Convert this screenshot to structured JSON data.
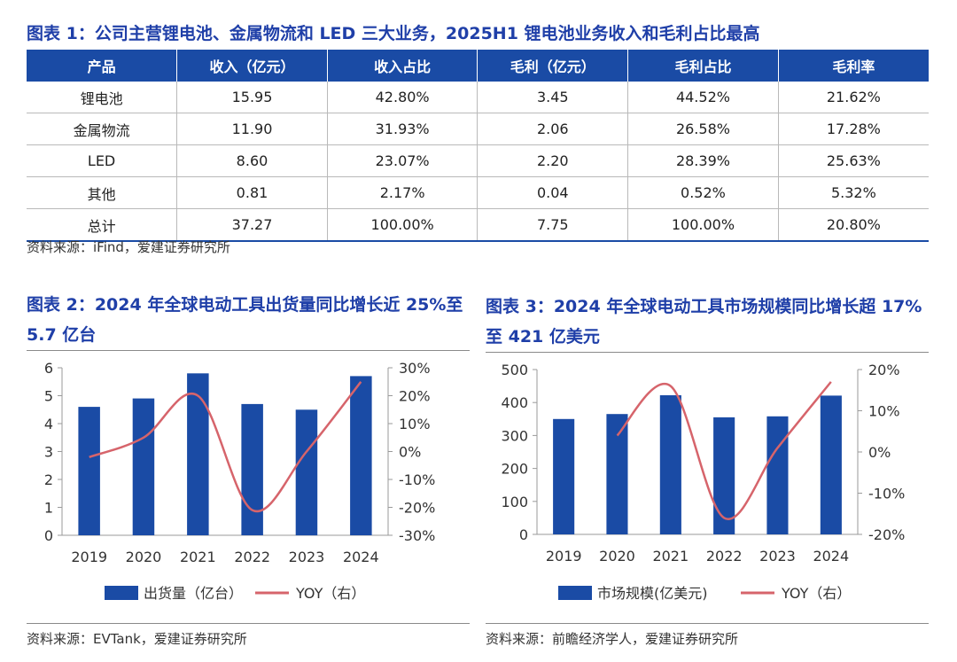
{
  "table1": {
    "title": "图表 1：公司主营锂电池、金属物流和 LED 三大业务，2025H1 锂电池业务收入和毛利占比最高",
    "headers": [
      "产品",
      "收入（亿元）",
      "收入占比",
      "毛利（亿元）",
      "毛利占比",
      "毛利率"
    ],
    "rows": [
      [
        "锂电池",
        "15.95",
        "42.80%",
        "3.45",
        "44.52%",
        "21.62%"
      ],
      [
        "金属物流",
        "11.90",
        "31.93%",
        "2.06",
        "26.58%",
        "17.28%"
      ],
      [
        "LED",
        "8.60",
        "23.07%",
        "2.20",
        "28.39%",
        "25.63%"
      ],
      [
        "其他",
        "0.81",
        "2.17%",
        "0.04",
        "0.52%",
        "5.32%"
      ],
      [
        "总计",
        "37.27",
        "100.00%",
        "7.75",
        "100.00%",
        "20.80%"
      ]
    ],
    "source": "资料来源：iFind，爱建证券研究所"
  },
  "chart_data": [
    {
      "type": "bar",
      "title_line1": "图表 2：2024 年全球电动工具出货量同比增长近 25%至",
      "title_line2": "5.7 亿台",
      "categories": [
        "2019",
        "2020",
        "2021",
        "2022",
        "2023",
        "2024"
      ],
      "series": [
        {
          "name": "出货量（亿台）",
          "type": "bar",
          "axis": "left",
          "values": [
            4.6,
            4.9,
            5.8,
            4.7,
            4.5,
            5.7
          ]
        },
        {
          "name": "YOY（右）",
          "type": "line",
          "axis": "right",
          "values": [
            -2,
            5,
            20,
            -21,
            0,
            25
          ]
        }
      ],
      "ylim_left": [
        0,
        6
      ],
      "yticks_left": [
        "0",
        "1",
        "2",
        "3",
        "4",
        "5",
        "6"
      ],
      "ylim_right": [
        -30,
        30
      ],
      "yticks_right": [
        "-30%",
        "-20%",
        "-10%",
        "0%",
        "10%",
        "20%",
        "30%"
      ],
      "source": "资料来源：EVTank，爱建证券研究所",
      "colors": {
        "bar": "#1a4ba5",
        "line": "#d6646b"
      }
    },
    {
      "type": "bar",
      "title_line1": "图表 3：2024 年全球电动工具市场规模同比增长超 17%",
      "title_line2": "至 421 亿美元",
      "categories": [
        "2019",
        "2020",
        "2021",
        "2022",
        "2023",
        "2024"
      ],
      "series": [
        {
          "name": "市场规模(亿美元)",
          "type": "bar",
          "axis": "left",
          "values": [
            350,
            365,
            422,
            355,
            358,
            421
          ]
        },
        {
          "name": "YOY（右）",
          "type": "line",
          "axis": "right",
          "values": [
            null,
            4,
            16,
            -16,
            1,
            17
          ]
        }
      ],
      "ylim_left": [
        0,
        500
      ],
      "yticks_left": [
        "0",
        "100",
        "200",
        "300",
        "400",
        "500"
      ],
      "ylim_right": [
        -20,
        20
      ],
      "yticks_right": [
        "-20%",
        "-10%",
        "0%",
        "10%",
        "20%"
      ],
      "source": "资料来源：前瞻经济学人，爱建证券研究所",
      "colors": {
        "bar": "#1a4ba5",
        "line": "#d6646b"
      }
    }
  ]
}
